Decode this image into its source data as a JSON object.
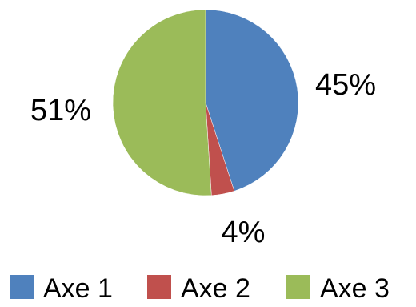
{
  "chart_data": {
    "type": "pie",
    "title": "",
    "categories": [
      "Axe 1",
      "Axe 2",
      "Axe 3"
    ],
    "values": [
      45,
      4,
      51
    ],
    "data_labels": [
      "45%",
      "4%",
      "51%"
    ],
    "colors": [
      "#4f81bd",
      "#c0504d",
      "#9bbb59"
    ],
    "start_angle": "12 o'clock",
    "direction": "clockwise",
    "legend": {
      "placement": "bottom",
      "entries": [
        "Axe 1",
        "Axe 2",
        "Axe 3"
      ]
    }
  }
}
